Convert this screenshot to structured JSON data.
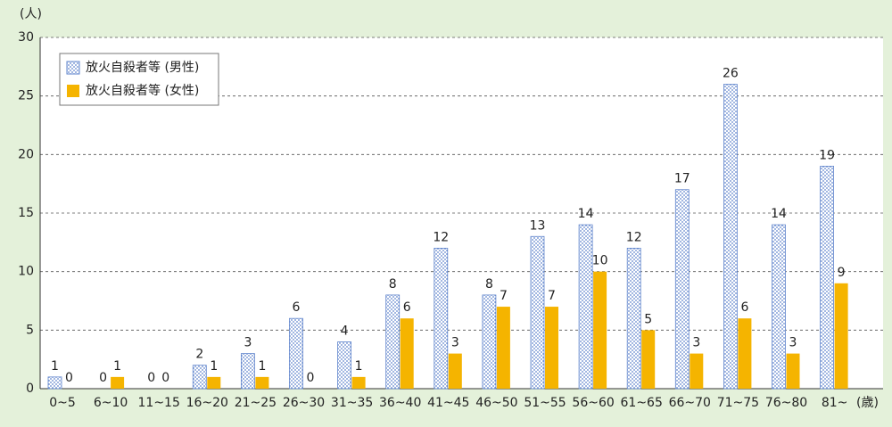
{
  "chart_data": {
    "type": "bar",
    "y_label": "(人)",
    "x_label": "(歳)",
    "categories": [
      "0~5",
      "6~10",
      "11~15",
      "16~20",
      "21~25",
      "26~30",
      "31~35",
      "36~40",
      "41~45",
      "46~50",
      "51~55",
      "56~60",
      "61~65",
      "66~70",
      "71~75",
      "76~80",
      "81~"
    ],
    "series": [
      {
        "name": "放火自殺者等 (男性)",
        "color": "#5f84cc",
        "pattern": "dots",
        "values": [
          1,
          0,
          0,
          2,
          3,
          6,
          4,
          8,
          12,
          8,
          13,
          14,
          12,
          17,
          26,
          14,
          19
        ]
      },
      {
        "name": "放火自殺者等 (女性)",
        "color": "#f5b400",
        "values": [
          0,
          1,
          0,
          1,
          1,
          0,
          1,
          6,
          3,
          7,
          7,
          10,
          5,
          3,
          6,
          3,
          9
        ]
      }
    ],
    "ylim": [
      0,
      30
    ],
    "yticks": [
      0,
      5,
      10,
      15,
      20,
      25,
      30
    ],
    "grid": true,
    "legend": "top-left"
  }
}
